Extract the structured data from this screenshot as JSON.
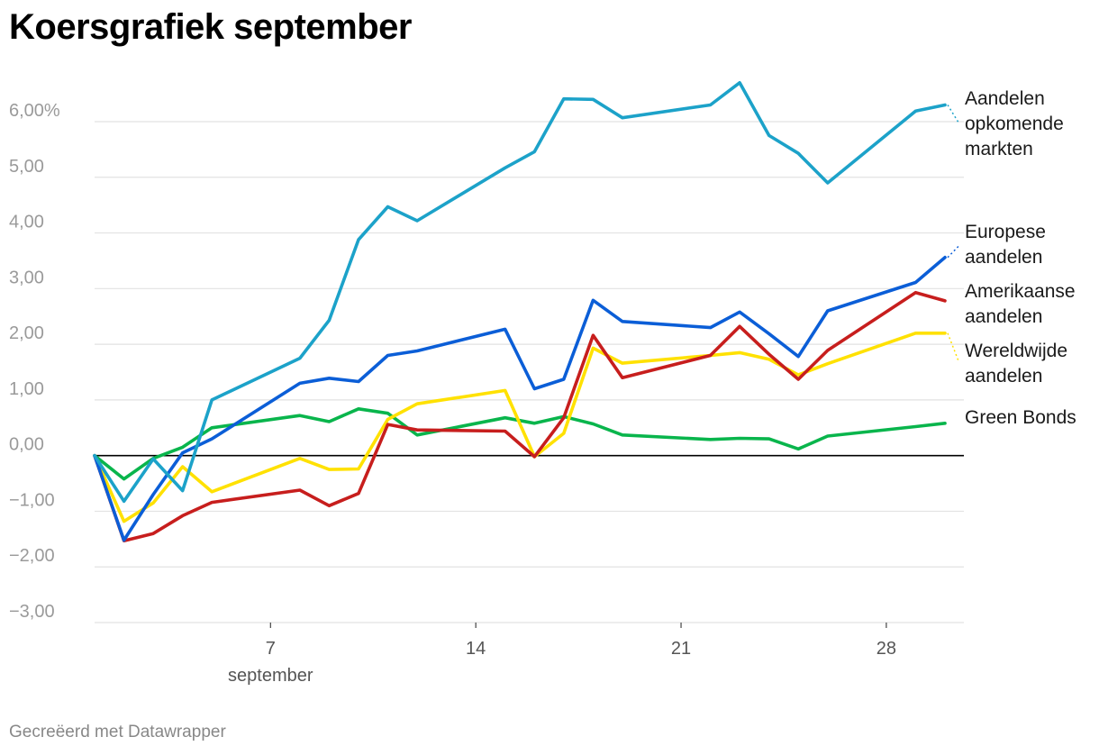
{
  "chart_data": {
    "type": "line",
    "title": "Koersgrafiek september",
    "credit": "Gecreëerd met Datawrapper",
    "x": [
      1,
      2,
      3,
      4,
      5,
      8,
      9,
      10,
      11,
      12,
      15,
      16,
      17,
      18,
      19,
      22,
      23,
      24,
      25,
      26,
      29,
      30
    ],
    "xticks": [
      {
        "value": 7,
        "label": "7"
      },
      {
        "value": 14,
        "label": "14"
      },
      {
        "value": 21,
        "label": "21"
      },
      {
        "value": 28,
        "label": "28"
      }
    ],
    "xlabel": "september",
    "ylim": [
      -3,
      6.8
    ],
    "yticks": [
      {
        "value": 6,
        "label": "6,00%"
      },
      {
        "value": 5,
        "label": "5,00"
      },
      {
        "value": 4,
        "label": "4,00"
      },
      {
        "value": 3,
        "label": "3,00"
      },
      {
        "value": 2,
        "label": "2,00"
      },
      {
        "value": 1,
        "label": "1,00"
      },
      {
        "value": 0,
        "label": "0,00"
      },
      {
        "value": -1,
        "label": "−1,00"
      },
      {
        "value": -2,
        "label": "−2,00"
      },
      {
        "value": -3,
        "label": "−3,00"
      }
    ],
    "series": [
      {
        "name": "Green Bonds",
        "label": [
          "Green Bonds"
        ],
        "color": "#09b54c",
        "values": [
          0,
          -0.42,
          -0.05,
          0.15,
          0.5,
          0.72,
          0.61,
          0.84,
          0.76,
          0.37,
          0.68,
          0.58,
          0.7,
          0.57,
          0.37,
          0.29,
          0.31,
          0.3,
          0.12,
          0.35,
          0.52,
          0.58
        ]
      },
      {
        "name": "Wereldwijde aandelen",
        "label": [
          "Wereldwijde",
          "aandelen"
        ],
        "color": "#ffe100",
        "values": [
          0,
          -1.18,
          -0.85,
          -0.2,
          -0.65,
          -0.05,
          -0.25,
          -0.24,
          0.65,
          0.93,
          1.17,
          -0.02,
          0.4,
          1.93,
          1.66,
          1.8,
          1.85,
          1.73,
          1.45,
          1.65,
          2.2,
          2.2
        ]
      },
      {
        "name": "Amerikaanse aandelen",
        "label": [
          "Amerikaanse",
          "aandelen"
        ],
        "color": "#c71e1d",
        "values": [
          0,
          -1.53,
          -1.4,
          -1.08,
          -0.84,
          -0.62,
          -0.9,
          -0.68,
          0.56,
          0.46,
          0.44,
          -0.02,
          0.68,
          2.16,
          1.4,
          1.8,
          2.32,
          1.82,
          1.37,
          1.89,
          2.93,
          2.78
        ]
      },
      {
        "name": "Europese aandelen",
        "label": [
          "Europese",
          "aandelen"
        ],
        "color": "#0b5ed7",
        "values": [
          0,
          -1.52,
          -0.7,
          0.05,
          0.3,
          1.3,
          1.39,
          1.33,
          1.8,
          1.88,
          2.27,
          1.2,
          1.37,
          2.79,
          2.41,
          2.3,
          2.58,
          2.19,
          1.78,
          2.6,
          3.11,
          3.56
        ]
      },
      {
        "name": "Aandelen opkomende markten",
        "label": [
          "Aandelen",
          "opkomende",
          "markten"
        ],
        "color": "#1ca2c9",
        "values": [
          0,
          -0.82,
          -0.06,
          -0.63,
          1.0,
          1.75,
          2.43,
          3.88,
          4.47,
          4.22,
          5.17,
          5.46,
          6.41,
          6.4,
          6.07,
          6.3,
          6.7,
          5.75,
          5.43,
          4.9,
          6.19,
          6.3
        ]
      }
    ]
  }
}
